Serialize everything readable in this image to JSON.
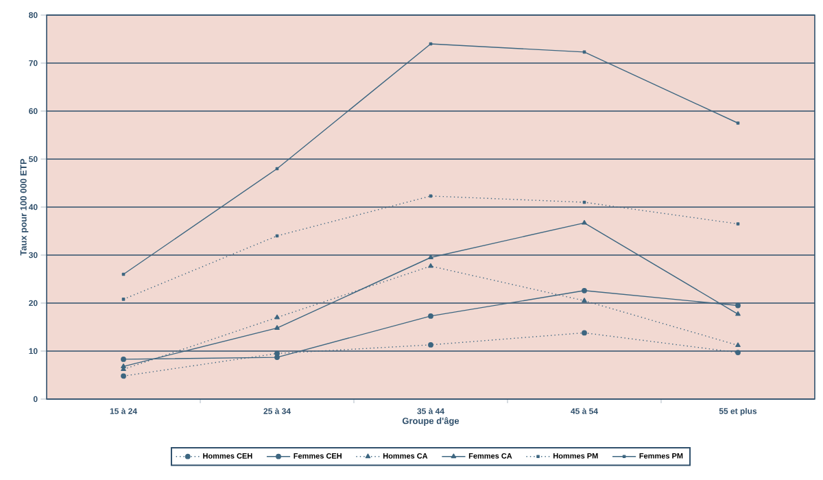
{
  "chart_data": {
    "type": "line",
    "xlabel": "Groupe d'âge",
    "ylabel": "Taux pour 100 000 ETP",
    "categories": [
      "15 à 24",
      "25 à 34",
      "35 à 44",
      "45 à 54",
      "55 et plus"
    ],
    "ylim": [
      0,
      80
    ],
    "yticks": [
      0,
      10,
      20,
      30,
      40,
      50,
      60,
      70,
      80
    ],
    "grid": "y",
    "legend": "bottom",
    "series": [
      {
        "name": "Hommes CEH",
        "color": "#3d6680",
        "marker": "circle",
        "line_style": "dotted",
        "values": [
          4.8,
          9.5,
          11.3,
          13.8,
          9.7
        ]
      },
      {
        "name": "Femmes CEH",
        "color": "#3d6680",
        "marker": "circle",
        "line_style": "solid",
        "values": [
          8.3,
          8.7,
          17.3,
          22.6,
          19.5
        ]
      },
      {
        "name": "Hommes CA",
        "color": "#3d6680",
        "marker": "triangle",
        "line_style": "dotted",
        "values": [
          6.2,
          17,
          27.7,
          20.5,
          11.2
        ]
      },
      {
        "name": "Femmes CA",
        "color": "#3d6680",
        "marker": "triangle",
        "line_style": "solid",
        "values": [
          6.8,
          14.8,
          29.5,
          36.7,
          17.7
        ]
      },
      {
        "name": "Hommes PM",
        "color": "#3d6680",
        "marker": "square",
        "line_style": "dotted",
        "values": [
          20.8,
          34,
          42.3,
          41,
          36.5
        ]
      },
      {
        "name": "Femmes PM",
        "color": "#3d6680",
        "marker": "square",
        "line_style": "solid",
        "values": [
          26,
          48,
          74,
          72.3,
          57.5
        ]
      }
    ]
  }
}
